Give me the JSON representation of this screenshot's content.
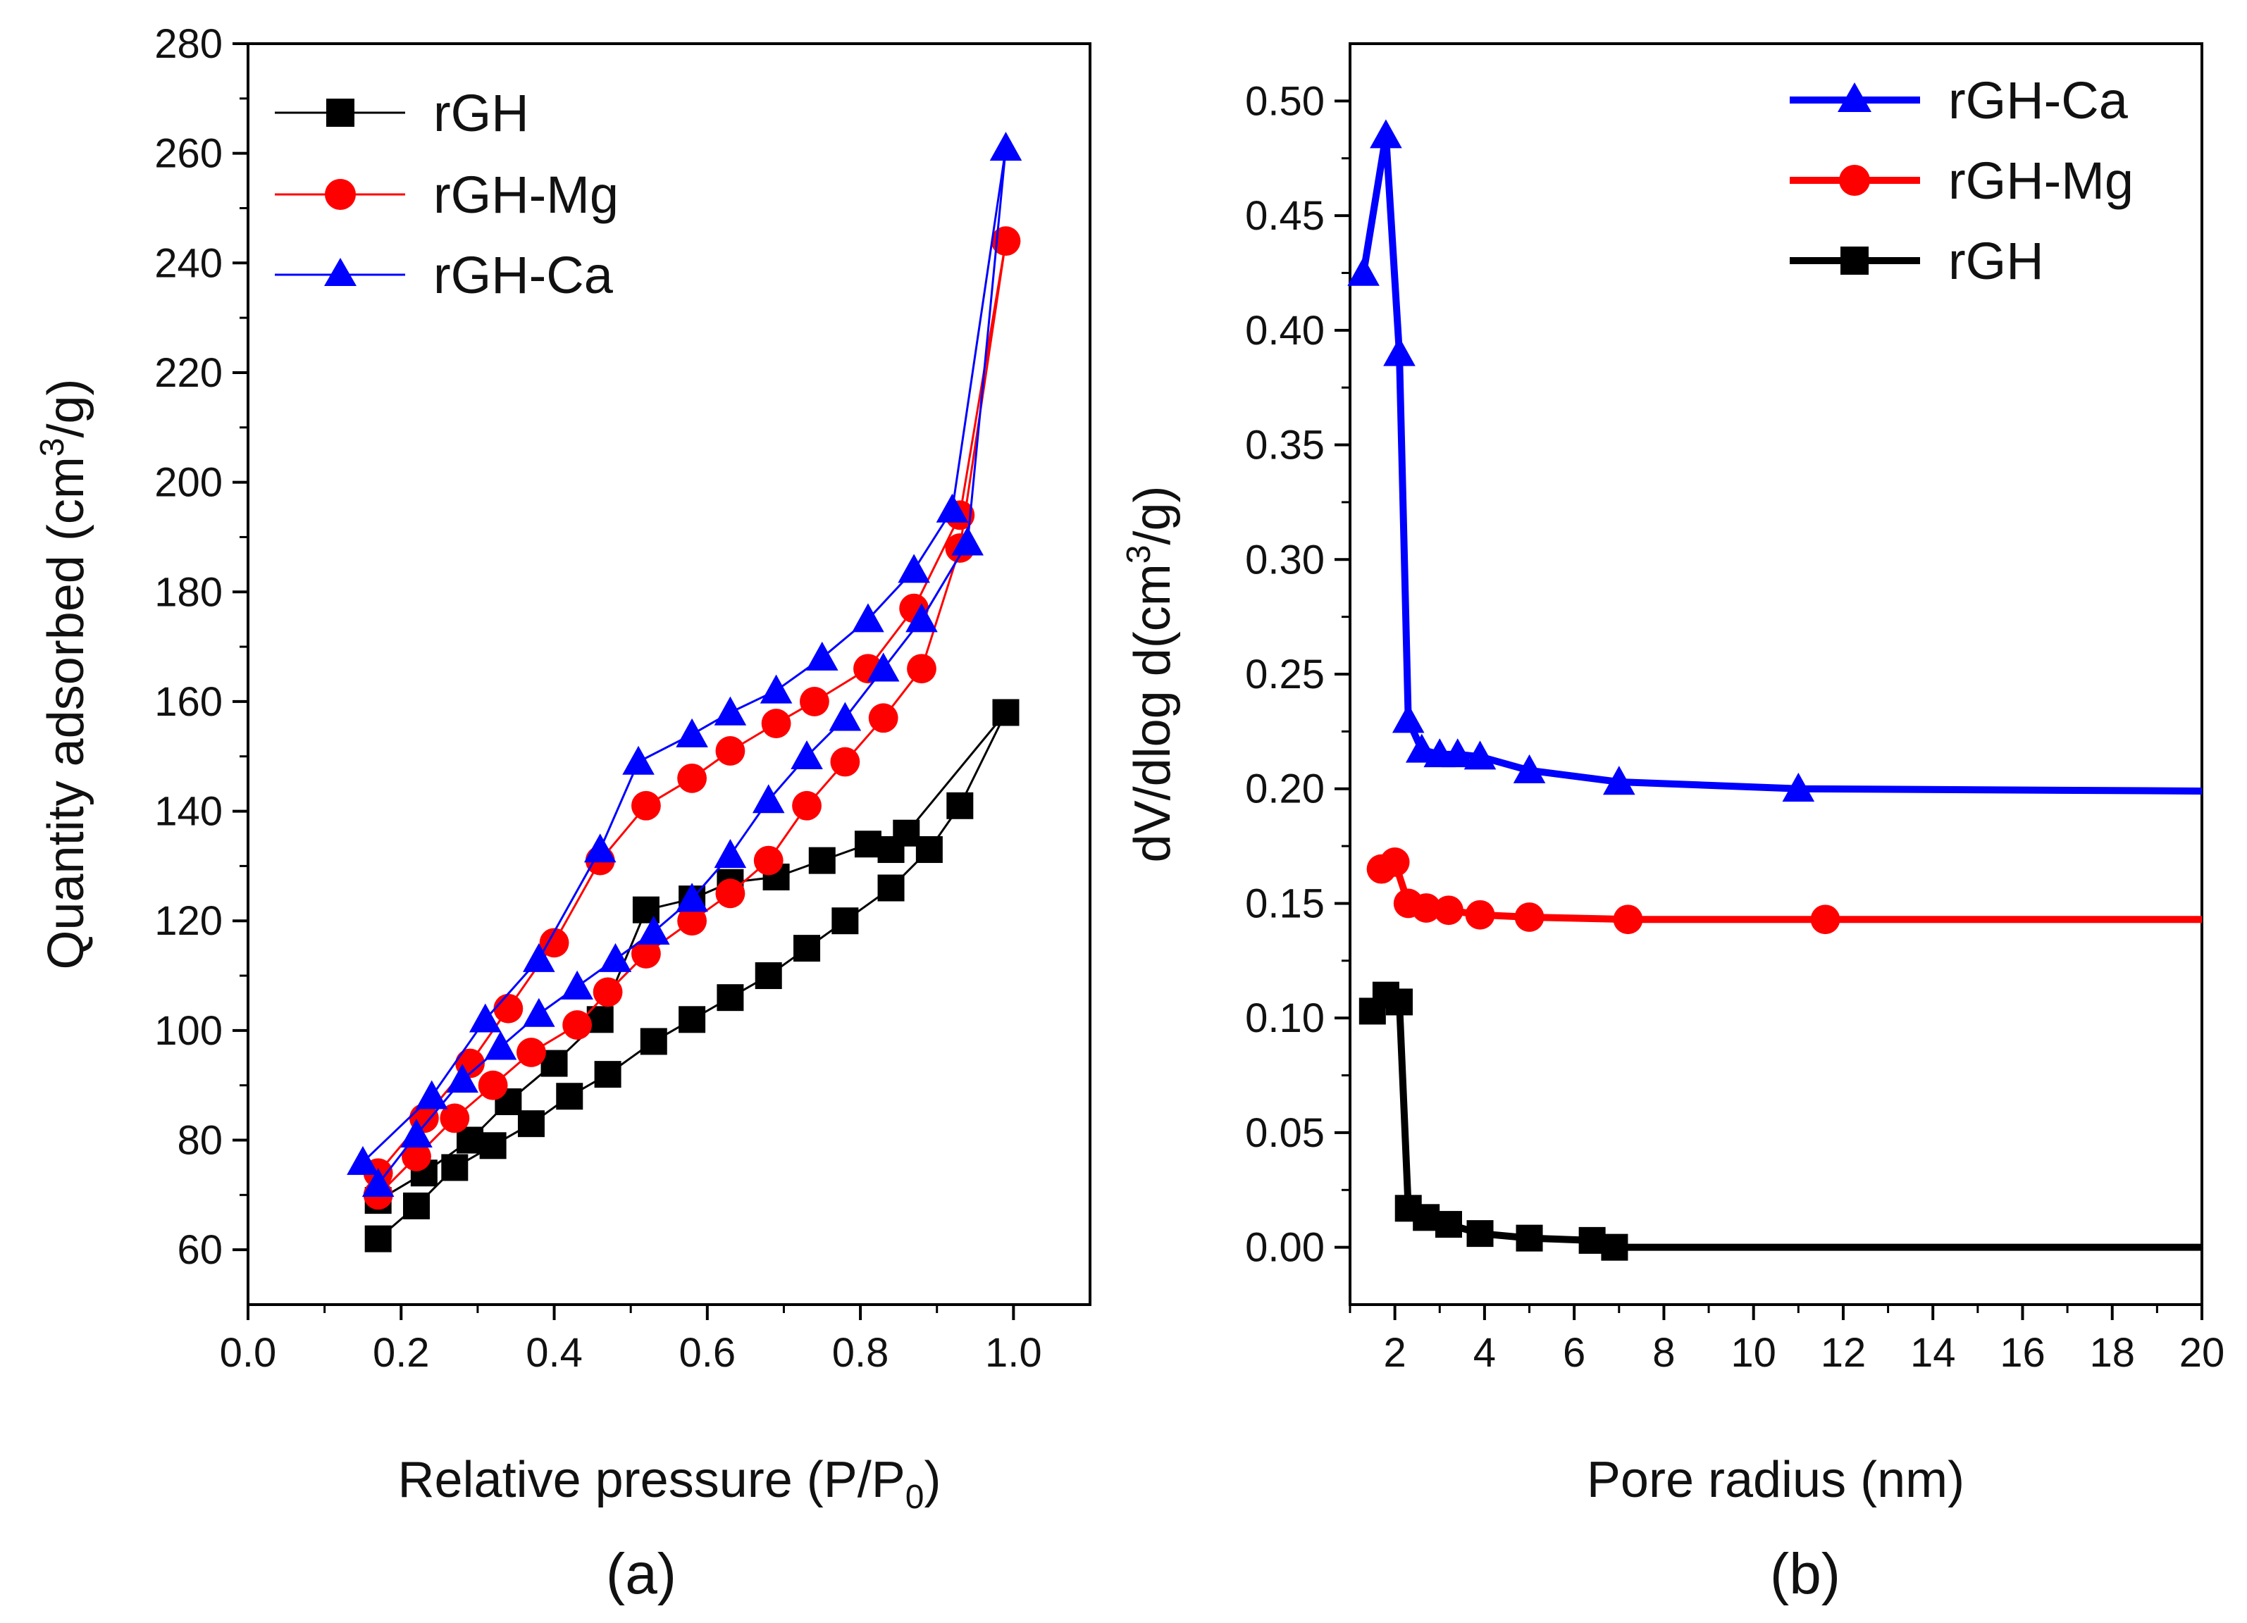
{
  "chart_data": [
    {
      "panel": "(a)",
      "type": "line",
      "title": "",
      "xlabel": "Relative pressure (P/P",
      "xlabel_sub": "0",
      "xlabel_close": ")",
      "ylabel": "Quantity adsorbed (cm",
      "ylabel_sup": "3",
      "ylabel_close": "/g)",
      "xlim": [
        0.0,
        1.1
      ],
      "ylim": [
        50,
        280
      ],
      "xticks": [
        0.0,
        0.2,
        0.4,
        0.6,
        0.8,
        1.0
      ],
      "xtick_labels": [
        "0.0",
        "0.2",
        "0.4",
        "0.6",
        "0.8",
        "1.0"
      ],
      "yticks": [
        60,
        80,
        100,
        120,
        140,
        160,
        180,
        200,
        220,
        240,
        260,
        280
      ],
      "ytick_labels": [
        "60",
        "80",
        "100",
        "120",
        "140",
        "160",
        "180",
        "200",
        "220",
        "240",
        "260",
        "280"
      ],
      "legend_position": "top-left",
      "legend": [
        "rGH",
        "rGH-Mg",
        "rGH-Ca"
      ],
      "series": [
        {
          "name": "rGH",
          "color": "#000000",
          "marker": "square",
          "x": [
            0.17,
            0.22,
            0.27,
            0.32,
            0.37,
            0.42,
            0.47,
            0.53,
            0.58,
            0.63,
            0.68,
            0.73,
            0.78,
            0.84,
            0.89,
            0.93,
            0.99,
            0.86,
            0.84,
            0.81,
            0.75,
            0.69,
            0.63,
            0.58,
            0.52,
            0.46,
            0.4,
            0.34,
            0.29,
            0.23,
            0.17
          ],
          "y": [
            62,
            68,
            75,
            79,
            83,
            88,
            92,
            98,
            102,
            106,
            110,
            115,
            120,
            126,
            133,
            141,
            158,
            136,
            133,
            134,
            131,
            128,
            127,
            124,
            122,
            102,
            94,
            87,
            80,
            74,
            69
          ]
        },
        {
          "name": "rGH-Mg",
          "color": "#ff0000",
          "marker": "circle",
          "x": [
            0.17,
            0.22,
            0.27,
            0.32,
            0.37,
            0.43,
            0.47,
            0.52,
            0.58,
            0.63,
            0.68,
            0.73,
            0.78,
            0.83,
            0.88,
            0.93,
            0.99,
            0.93,
            0.87,
            0.81,
            0.74,
            0.69,
            0.63,
            0.58,
            0.52,
            0.46,
            0.4,
            0.34,
            0.29,
            0.23,
            0.17
          ],
          "y": [
            70,
            77,
            84,
            90,
            96,
            101,
            107,
            114,
            120,
            125,
            131,
            141,
            149,
            157,
            166,
            188,
            244,
            194,
            177,
            166,
            160,
            156,
            151,
            146,
            141,
            131,
            116,
            104,
            94,
            84,
            74
          ]
        },
        {
          "name": "rGH-Ca",
          "color": "#0000ff",
          "marker": "triangle",
          "x": [
            0.17,
            0.22,
            0.28,
            0.33,
            0.38,
            0.43,
            0.48,
            0.53,
            0.58,
            0.63,
            0.68,
            0.73,
            0.78,
            0.83,
            0.88,
            0.94,
            0.99,
            0.92,
            0.87,
            0.81,
            0.75,
            0.69,
            0.63,
            0.58,
            0.51,
            0.46,
            0.38,
            0.31,
            0.24,
            0.15
          ],
          "y": [
            72,
            81,
            91,
            97,
            103,
            108,
            113,
            118,
            124,
            132,
            142,
            150,
            157,
            166,
            175,
            189,
            261,
            195,
            184,
            175,
            168,
            162,
            158,
            154,
            149,
            133,
            113,
            102,
            88,
            76
          ]
        }
      ]
    },
    {
      "panel": "(b)",
      "type": "line",
      "title": "",
      "xlabel": "Pore radius (nm)",
      "ylabel": "dV/dlog d(cm",
      "ylabel_sup": "3",
      "ylabel_close": "/g)",
      "xlim": [
        1,
        20
      ],
      "ylim": [
        -0.025,
        0.525
      ],
      "xticks": [
        2,
        4,
        6,
        8,
        10,
        12,
        14,
        16,
        18,
        20
      ],
      "xtick_labels": [
        "2",
        "4",
        "6",
        "8",
        "10",
        "12",
        "14",
        "16",
        "18",
        "20"
      ],
      "yticks": [
        0.0,
        0.05,
        0.1,
        0.15,
        0.2,
        0.25,
        0.3,
        0.35,
        0.4,
        0.45,
        0.5
      ],
      "ytick_labels": [
        "0.00",
        "0.05",
        "0.10",
        "0.15",
        "0.20",
        "0.25",
        "0.30",
        "0.35",
        "0.40",
        "0.45",
        "0.50"
      ],
      "legend_position": "top-right",
      "legend": [
        "rGH-Ca",
        "rGH-Mg",
        "rGH"
      ],
      "series": [
        {
          "name": "rGH-Ca",
          "color": "#0000ff",
          "marker": "triangle",
          "x": [
            1.3,
            1.8,
            2.1,
            2.3,
            2.6,
            3.0,
            3.4,
            3.9,
            5.0,
            7.0,
            11.0,
            20.0
          ],
          "y": [
            0.425,
            0.485,
            0.39,
            0.23,
            0.217,
            0.215,
            0.215,
            0.214,
            0.208,
            0.203,
            0.2,
            0.199
          ],
          "marker_indices": [
            0,
            1,
            2,
            3,
            4,
            5,
            6,
            7,
            8,
            9,
            10
          ]
        },
        {
          "name": "rGH-Mg",
          "color": "#ff0000",
          "marker": "circle",
          "x": [
            1.7,
            2.0,
            2.3,
            2.7,
            3.2,
            3.9,
            5.0,
            7.2,
            11.6,
            20.0
          ],
          "y": [
            0.165,
            0.168,
            0.15,
            0.148,
            0.147,
            0.145,
            0.144,
            0.143,
            0.143,
            0.143
          ],
          "marker_indices": [
            0,
            1,
            2,
            3,
            4,
            5,
            6,
            7,
            8
          ]
        },
        {
          "name": "rGH",
          "color": "#000000",
          "marker": "square",
          "x": [
            1.5,
            1.8,
            2.1,
            2.3,
            2.7,
            3.2,
            3.9,
            5.0,
            6.4,
            6.9,
            20.0
          ],
          "y": [
            0.103,
            0.11,
            0.107,
            0.017,
            0.013,
            0.01,
            0.006,
            0.004,
            0.003,
            0.0,
            0.0
          ],
          "marker_indices": [
            0,
            1,
            2,
            3,
            4,
            5,
            6,
            7,
            8,
            9
          ]
        }
      ]
    }
  ]
}
